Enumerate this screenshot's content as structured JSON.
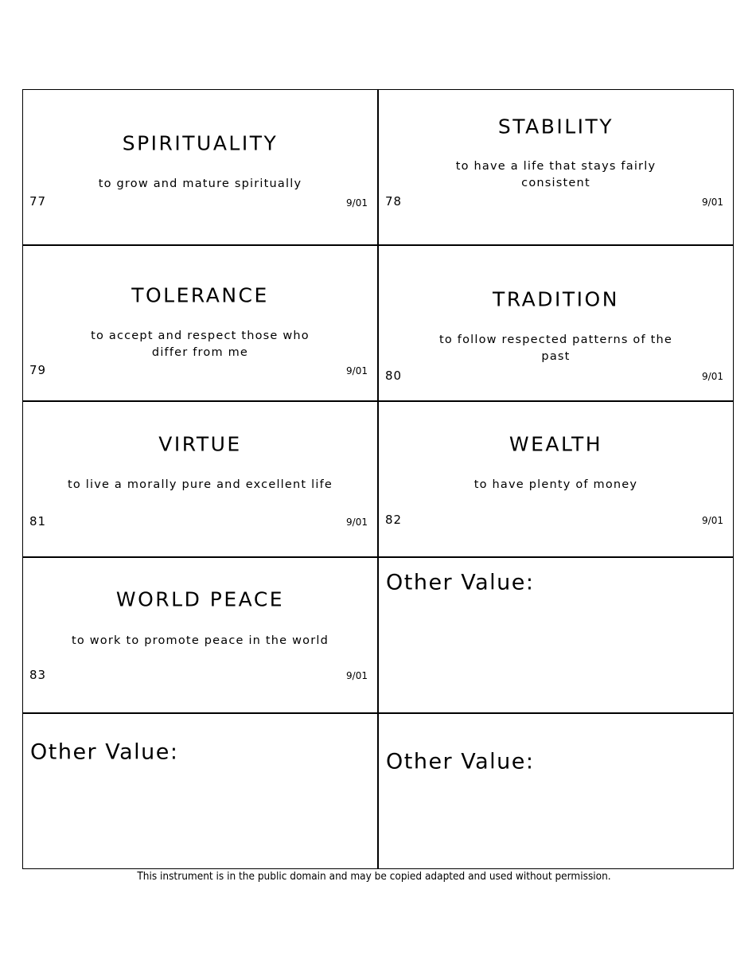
{
  "cards": [
    {
      "title": "SPIRITUALITY",
      "description": "to grow and mature spiritually",
      "number": "77",
      "date": "9/01"
    },
    {
      "title": "STABILITY",
      "description": "to have a life that stays fairly consistent",
      "number": "78",
      "date": "9/01"
    },
    {
      "title": "TOLERANCE",
      "description": "to accept and respect those who differ from me",
      "number": "79",
      "date": "9/01"
    },
    {
      "title": "TRADITION",
      "description": "to follow respected patterns of the past",
      "number": "80",
      "date": "9/01"
    },
    {
      "title": "VIRTUE",
      "description": "to live a morally pure and excellent life",
      "number": "81",
      "date": "9/01"
    },
    {
      "title": "WEALTH",
      "description": "to have plenty of money",
      "number": "82",
      "date": "9/01"
    },
    {
      "title": "WORLD PEACE",
      "description": "to work to promote peace in the world",
      "number": "83",
      "date": "9/01"
    }
  ],
  "other_cards": [
    {
      "label": "Other Value:"
    },
    {
      "label": "Other Value:"
    },
    {
      "label": "Other Value:"
    }
  ],
  "footer": "This instrument is in the public domain and may be copied adapted and used without permission."
}
